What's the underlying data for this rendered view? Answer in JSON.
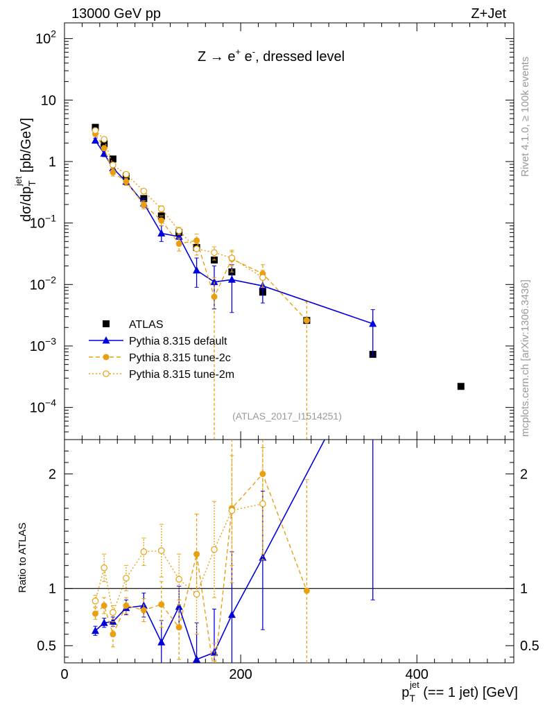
{
  "header": {
    "left": "13000 GeV pp",
    "right": "Z+Jet"
  },
  "side_labels": {
    "rivet": "Rivet 4.1.0, ≥ 100k events",
    "mcplots": "mcplots.cern.ch [arXiv:1306.3436]"
  },
  "annotation": {
    "process_main": "Z → e",
    "process_plus": "+",
    "process_mid": " e",
    "process_minus": "-",
    "process_tail": ", dressed level",
    "analysis": "(ATLAS_2017_I1514251)"
  },
  "axes": {
    "ylabel_main": "dσ/dp",
    "ylabel_sub": "T",
    "ylabel_sup": "jet",
    "ylabel_unit": " [pb/GeV]",
    "ylabel_ratio": "Ratio to ATLAS",
    "xlabel_main": "p",
    "xlabel_sub": "T",
    "xlabel_sup": "jet",
    "xlabel_tail": " (== 1 jet) [GeV]"
  },
  "colors": {
    "atlas": "#000000",
    "default": "#0000dd",
    "tune2c": "#e8a010",
    "tune2m": "#e8a010"
  },
  "chart_data": {
    "type": "scatter",
    "title": "Z → e+ e-, dressed level",
    "xlabel": "pT jet (== 1 jet) [GeV]",
    "ylabel": "dσ/dpT jet [pb/GeV]",
    "xlim": [
      0,
      510
    ],
    "ylim_main": [
      3e-05,
      180
    ],
    "yscale_main": "log",
    "ylim_ratio": [
      0.35,
      2.3
    ],
    "x_ticks": [
      "0",
      "200",
      "400"
    ],
    "x_tick_values": [
      0,
      200,
      400
    ],
    "y_ticks_main": [
      {
        "value": 100,
        "base": "10",
        "exp": "2"
      },
      {
        "value": 10,
        "base": "10",
        "exp": ""
      },
      {
        "value": 1,
        "base": "1",
        "exp": ""
      },
      {
        "value": 0.1,
        "base": "10",
        "exp": "−1"
      },
      {
        "value": 0.01,
        "base": "10",
        "exp": "−2"
      },
      {
        "value": 0.001,
        "base": "10",
        "exp": "−3"
      },
      {
        "value": 0.0001,
        "base": "10",
        "exp": "−4"
      }
    ],
    "y_ticks_ratio": [
      {
        "value": 0.5,
        "label": "0.5"
      },
      {
        "value": 1,
        "label": "1"
      },
      {
        "value": 2,
        "label": "2"
      }
    ],
    "legend": {
      "position": "lower-left",
      "entries": [
        "ATLAS",
        "Pythia 8.315 default",
        "Pythia 8.315 tune-2c",
        "Pythia 8.315 tune-2m"
      ]
    },
    "series": [
      {
        "name": "ATLAS",
        "style": "data",
        "points": [
          {
            "x": 35,
            "y": 3.6
          },
          {
            "x": 45,
            "y": 1.95
          },
          {
            "x": 55,
            "y": 1.1
          },
          {
            "x": 70,
            "y": 0.57
          },
          {
            "x": 90,
            "y": 0.25
          },
          {
            "x": 110,
            "y": 0.13
          },
          {
            "x": 130,
            "y": 0.07
          },
          {
            "x": 150,
            "y": 0.04
          },
          {
            "x": 170,
            "y": 0.025
          },
          {
            "x": 190,
            "y": 0.016
          },
          {
            "x": 225,
            "y": 0.0075
          },
          {
            "x": 275,
            "y": 0.0026
          },
          {
            "x": 350,
            "y": 0.00073
          },
          {
            "x": 450,
            "y": 0.00022
          }
        ]
      },
      {
        "name": "Pythia 8.315 default",
        "style": "solid-triangle",
        "points": [
          {
            "x": 35,
            "y": 2.2,
            "lo": 2.0,
            "hi": 2.4
          },
          {
            "x": 45,
            "y": 1.35,
            "lo": 1.2,
            "hi": 1.5
          },
          {
            "x": 55,
            "y": 0.78,
            "lo": 0.68,
            "hi": 0.9
          },
          {
            "x": 70,
            "y": 0.47,
            "lo": 0.42,
            "hi": 0.53
          },
          {
            "x": 90,
            "y": 0.21,
            "lo": 0.18,
            "hi": 0.25
          },
          {
            "x": 110,
            "y": 0.068,
            "lo": 0.05,
            "hi": 0.09
          },
          {
            "x": 130,
            "y": 0.06,
            "lo": 0.045,
            "hi": 0.075
          },
          {
            "x": 150,
            "y": 0.017,
            "lo": 0.009,
            "hi": 0.027
          },
          {
            "x": 170,
            "y": 0.011,
            "lo": 0.004,
            "hi": 0.02
          },
          {
            "x": 190,
            "y": 0.012,
            "lo": 0.0035,
            "hi": 0.021
          },
          {
            "x": 225,
            "y": 0.0095,
            "lo": 0.005,
            "hi": 0.014
          },
          {
            "x": 350,
            "y": 0.0023,
            "lo": 0.0007,
            "hi": 0.0039
          }
        ],
        "ratio": [
          {
            "x": 35,
            "y": 0.63,
            "lo": 0.59,
            "hi": 0.67
          },
          {
            "x": 45,
            "y": 0.7,
            "lo": 0.66,
            "hi": 0.74
          },
          {
            "x": 55,
            "y": 0.71,
            "lo": 0.67,
            "hi": 0.75
          },
          {
            "x": 70,
            "y": 0.83,
            "lo": 0.77,
            "hi": 0.9
          },
          {
            "x": 90,
            "y": 0.85,
            "lo": 0.75,
            "hi": 0.96
          },
          {
            "x": 110,
            "y": 0.53,
            "lo": 0.33,
            "hi": 0.72
          },
          {
            "x": 130,
            "y": 0.84,
            "lo": 0.66,
            "hi": 1.02
          },
          {
            "x": 150,
            "y": 0.38,
            "lo": 0.2,
            "hi": 0.7
          },
          {
            "x": 170,
            "y": 0.44,
            "lo": 0.2,
            "hi": 0.82
          },
          {
            "x": 190,
            "y": 0.77,
            "lo": 0.2,
            "hi": 1.32
          },
          {
            "x": 225,
            "y": 1.27,
            "lo": 0.64,
            "hi": 1.85
          },
          {
            "x": 350,
            "y": 3.1,
            "lo": 0.9,
            "hi": 5.3
          }
        ]
      },
      {
        "name": "Pythia 8.315 tune-2c",
        "style": "dashed-filled-circle",
        "points": [
          {
            "x": 35,
            "y": 2.8,
            "lo": 2.6,
            "hi": 3.0
          },
          {
            "x": 45,
            "y": 1.65,
            "lo": 1.5,
            "hi": 1.8
          },
          {
            "x": 55,
            "y": 0.67,
            "lo": 0.58,
            "hi": 0.76
          },
          {
            "x": 70,
            "y": 0.47,
            "lo": 0.41,
            "hi": 0.53
          },
          {
            "x": 90,
            "y": 0.2,
            "lo": 0.17,
            "hi": 0.23
          },
          {
            "x": 110,
            "y": 0.11,
            "lo": 0.09,
            "hi": 0.13
          },
          {
            "x": 130,
            "y": 0.046,
            "lo": 0.035,
            "hi": 0.057
          },
          {
            "x": 150,
            "y": 0.052,
            "lo": 0.038,
            "hi": 0.066
          },
          {
            "x": 170,
            "y": 0.0063,
            "lo": 1e-05,
            "hi": 0.013
          },
          {
            "x": 190,
            "y": 0.026,
            "lo": 0.016,
            "hi": 0.036
          },
          {
            "x": 225,
            "y": 0.015,
            "lo": 0.009,
            "hi": 0.021
          },
          {
            "x": 275,
            "y": 0.0026,
            "lo": 1e-05,
            "hi": 0.0052
          }
        ],
        "ratio": [
          {
            "x": 35,
            "y": 0.78,
            "lo": 0.73,
            "hi": 0.83
          },
          {
            "x": 45,
            "y": 0.85,
            "lo": 0.78,
            "hi": 0.92
          },
          {
            "x": 55,
            "y": 0.6,
            "lo": 0.49,
            "hi": 0.71
          },
          {
            "x": 70,
            "y": 0.85,
            "lo": 0.78,
            "hi": 0.92
          },
          {
            "x": 90,
            "y": 0.81,
            "lo": 0.71,
            "hi": 0.91
          },
          {
            "x": 110,
            "y": 0.86,
            "lo": 0.66,
            "hi": 1.06
          },
          {
            "x": 130,
            "y": 0.66,
            "lo": 0.38,
            "hi": 0.9
          },
          {
            "x": 150,
            "y": 1.3,
            "lo": 0.95,
            "hi": 1.65
          },
          {
            "x": 170,
            "y": 0.25,
            "lo": 0.01,
            "hi": 0.52
          },
          {
            "x": 190,
            "y": 1.7,
            "lo": 1.05,
            "hi": 2.35
          },
          {
            "x": 225,
            "y": 2.0,
            "lo": 1.3,
            "hi": 2.7
          },
          {
            "x": 275,
            "y": 0.98,
            "lo": 0.01,
            "hi": 1.95
          }
        ]
      },
      {
        "name": "Pythia 8.315 tune-2m",
        "style": "dotted-open-circle",
        "points": [
          {
            "x": 35,
            "y": 3.2,
            "lo": 3.0,
            "hi": 3.4
          },
          {
            "x": 45,
            "y": 2.3,
            "lo": 2.1,
            "hi": 2.5
          },
          {
            "x": 55,
            "y": 0.88,
            "lo": 0.8,
            "hi": 0.96
          },
          {
            "x": 70,
            "y": 0.62,
            "lo": 0.56,
            "hi": 0.68
          },
          {
            "x": 90,
            "y": 0.33,
            "lo": 0.3,
            "hi": 0.36
          },
          {
            "x": 110,
            "y": 0.17,
            "lo": 0.15,
            "hi": 0.19
          },
          {
            "x": 130,
            "y": 0.075,
            "lo": 0.065,
            "hi": 0.085
          },
          {
            "x": 150,
            "y": 0.038,
            "lo": 0.03,
            "hi": 0.046
          },
          {
            "x": 170,
            "y": 0.033,
            "lo": 0.025,
            "hi": 0.041
          },
          {
            "x": 190,
            "y": 0.027,
            "lo": 0.02,
            "hi": 0.034
          },
          {
            "x": 225,
            "y": 0.013,
            "lo": 0.009,
            "hi": 0.017
          }
        ],
        "ratio": [
          {
            "x": 35,
            "y": 0.89,
            "lo": 0.84,
            "hi": 0.94
          },
          {
            "x": 45,
            "y": 1.18,
            "lo": 1.06,
            "hi": 1.3
          },
          {
            "x": 55,
            "y": 0.79,
            "lo": 0.73,
            "hi": 0.85
          },
          {
            "x": 70,
            "y": 1.09,
            "lo": 0.98,
            "hi": 1.2
          },
          {
            "x": 90,
            "y": 1.32,
            "lo": 1.2,
            "hi": 1.44
          },
          {
            "x": 110,
            "y": 1.33,
            "lo": 1.1,
            "hi": 1.56
          },
          {
            "x": 130,
            "y": 1.08,
            "lo": 0.86,
            "hi": 1.3
          },
          {
            "x": 150,
            "y": 0.95,
            "lo": 0.6,
            "hi": 1.28
          },
          {
            "x": 170,
            "y": 1.34,
            "lo": 0.92,
            "hi": 1.76
          },
          {
            "x": 190,
            "y": 1.68,
            "lo": 1.2,
            "hi": 2.16
          },
          {
            "x": 225,
            "y": 1.74,
            "lo": 1.25,
            "hi": 2.23
          }
        ]
      }
    ]
  }
}
